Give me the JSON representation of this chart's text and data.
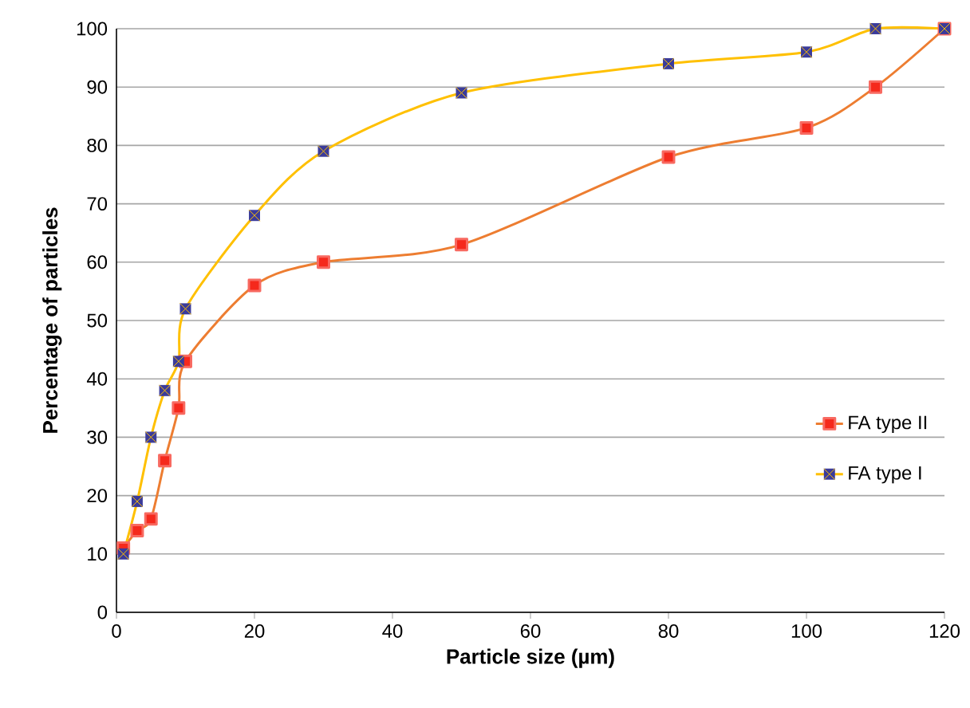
{
  "chart_data": {
    "type": "line",
    "xlabel": "Particle size (µm)",
    "ylabel": "Percentage of particles",
    "xlim": [
      0,
      120
    ],
    "xticks": [
      0,
      20,
      40,
      60,
      80,
      100,
      120
    ],
    "ylim": [
      0,
      100
    ],
    "yticks": [
      0,
      10,
      20,
      30,
      40,
      50,
      60,
      70,
      80,
      90,
      100
    ],
    "grid": "y",
    "legend": "right",
    "series": [
      {
        "name": "FA type II",
        "color": "#ed7d31",
        "marker": "square",
        "x": [
          1,
          3,
          5,
          7,
          9,
          10,
          20,
          30,
          50,
          80,
          100,
          110,
          120
        ],
        "values": [
          11,
          14,
          16,
          26,
          35,
          43,
          56,
          60,
          63,
          78,
          83,
          90,
          100
        ]
      },
      {
        "name": "FA type I",
        "color": "#ffc000",
        "marker": "cross",
        "x": [
          1,
          3,
          5,
          7,
          9,
          10,
          20,
          30,
          50,
          80,
          100,
          110,
          120
        ],
        "values": [
          10,
          19,
          30,
          38,
          43,
          52,
          68,
          79,
          89,
          94,
          96,
          100,
          100
        ]
      }
    ]
  }
}
